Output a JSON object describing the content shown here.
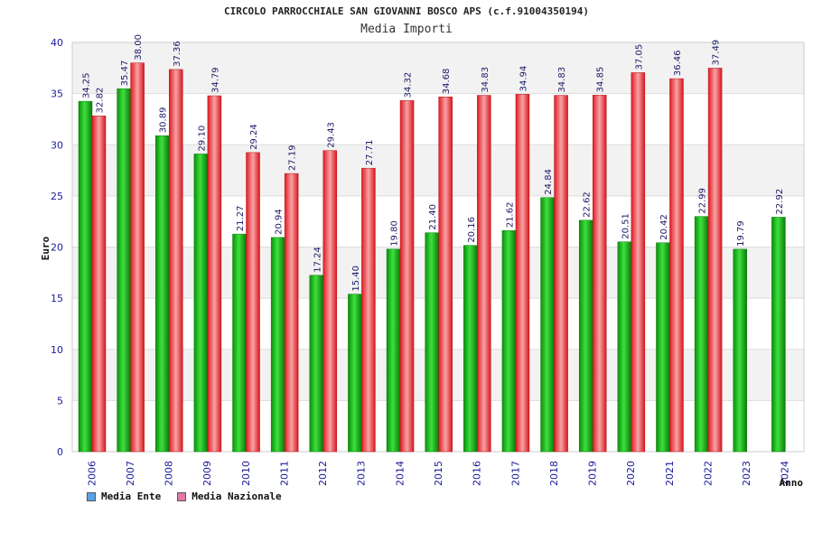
{
  "title": "CIRCOLO PARROCCHIALE SAN GIOVANNI BOSCO APS (c.f.91004350194)",
  "subtitle": "Media Importi",
  "chart_data": {
    "type": "bar",
    "title": "CIRCOLO PARROCCHIALE SAN GIOVANNI BOSCO APS (c.f.91004350194)",
    "subtitle": "Media Importi",
    "xlabel": "Anno",
    "ylabel": "Euro",
    "ylim": [
      0,
      40
    ],
    "yticks": [
      0,
      5,
      10,
      15,
      20,
      25,
      30,
      35,
      40
    ],
    "grid": true,
    "legend_position": "bottom-left",
    "categories": [
      "2006",
      "2007",
      "2008",
      "2009",
      "2010",
      "2011",
      "2012",
      "2013",
      "2014",
      "2015",
      "2016",
      "2017",
      "2018",
      "2019",
      "2020",
      "2021",
      "2022",
      "2023",
      "2024"
    ],
    "series": [
      {
        "name": "Media Ente",
        "color": "#1fbf1f",
        "legend_color": "#5aa0e6",
        "values": [
          34.25,
          35.47,
          30.89,
          29.1,
          21.27,
          20.94,
          17.24,
          15.4,
          19.8,
          21.4,
          20.16,
          21.62,
          24.84,
          22.62,
          20.51,
          20.42,
          22.99,
          19.79,
          22.92
        ],
        "labels": [
          "34.25",
          "35.47",
          "30.89",
          "29.10",
          "21.27",
          "20.94",
          "17.24",
          "15.40",
          "19.80",
          "21.40",
          "20.16",
          "21.62",
          "24.84",
          "22.62",
          "20.51",
          "20.42",
          "22.99",
          "19.79",
          "22.92"
        ]
      },
      {
        "name": "Media Nazionale",
        "color": "#e8232a",
        "legend_color": "#e07aa8",
        "values": [
          32.82,
          38.0,
          37.36,
          34.79,
          29.24,
          27.19,
          29.43,
          27.71,
          34.32,
          34.68,
          34.83,
          34.94,
          34.83,
          34.85,
          37.05,
          36.46,
          37.49,
          null,
          null
        ],
        "labels": [
          "32.82",
          "38.00",
          "37.36",
          "34.79",
          "29.24",
          "27.19",
          "29.43",
          "27.71",
          "34.32",
          "34.68",
          "34.83",
          "34.94",
          "34.83",
          "34.85",
          "37.05",
          "36.46",
          "37.49",
          "",
          ""
        ]
      }
    ]
  }
}
